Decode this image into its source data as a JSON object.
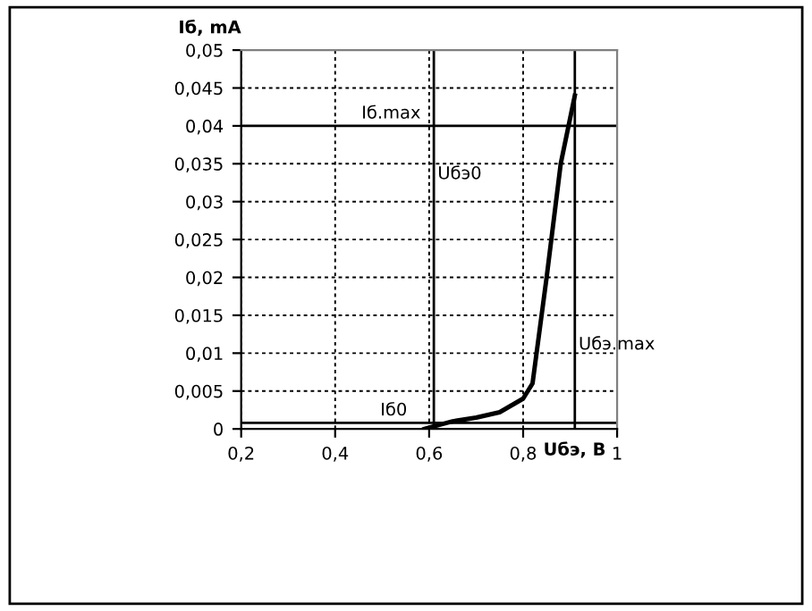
{
  "chart_data": {
    "type": "line",
    "xlabel": "Uбэ, В",
    "ylabel": "Iб, mA",
    "x": [
      0.59,
      0.62,
      0.65,
      0.7,
      0.75,
      0.8,
      0.82,
      0.85,
      0.88,
      0.91
    ],
    "series": [
      {
        "color": "#000000",
        "values": [
          0,
          0.0005,
          0.001,
          0.0015,
          0.0022,
          0.004,
          0.006,
          0.02,
          0.035,
          0.044
        ]
      }
    ],
    "xlim": [
      0.2,
      1
    ],
    "ylim": [
      0,
      0.05
    ],
    "xticks": [
      {
        "value": 0.2,
        "label": "0,2"
      },
      {
        "value": 0.4,
        "label": "0,4"
      },
      {
        "value": 0.6,
        "label": "0,6"
      },
      {
        "value": 0.8,
        "label": "0,8"
      },
      1
    ],
    "yticks": [
      0,
      {
        "value": 0.005,
        "label": "0,005"
      },
      {
        "value": 0.01,
        "label": "0,01"
      },
      {
        "value": 0.015,
        "label": "0,015"
      },
      {
        "value": 0.02,
        "label": "0,02"
      },
      {
        "value": 0.025,
        "label": "0,025"
      },
      {
        "value": 0.03,
        "label": "0,03"
      },
      {
        "value": 0.035,
        "label": "0,035"
      },
      {
        "value": 0.04,
        "label": "0,04"
      },
      {
        "value": 0.045,
        "label": "0,045"
      },
      {
        "value": 0.05,
        "label": "0,05"
      }
    ],
    "ref_lines": [
      {
        "axis": "y",
        "value": 0.04,
        "label": "Iб.max"
      },
      {
        "axis": "x",
        "value": 0.61,
        "label": "Uбэ0"
      },
      {
        "axis": "x",
        "value": 0.91,
        "label": "Uбэ.max"
      },
      {
        "axis": "y",
        "value": 0.0008,
        "label": "Iб0"
      }
    ],
    "grid": true,
    "marker": "none",
    "line_style": "solid"
  }
}
